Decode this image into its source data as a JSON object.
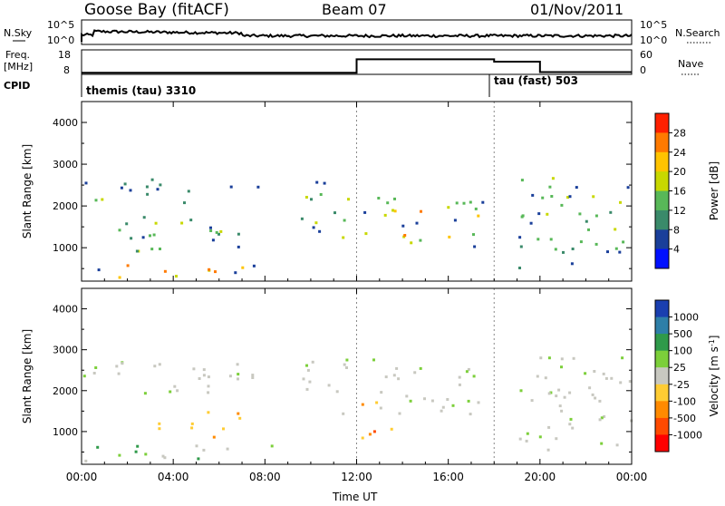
{
  "header": {
    "station": "Goose Bay (fitACF)",
    "beam": "Beam 07",
    "date": "01/Nov/2011"
  },
  "strip_labels": {
    "nsky": "N.Sky",
    "nsky_ticks": [
      "10^5",
      "10^0"
    ],
    "nsearch": "N.Search",
    "freq_top": "Freq.",
    "freq_bottom": "[MHz]",
    "freq_ticks": [
      "18",
      "8"
    ],
    "nave": "Nave",
    "nave_ticks": [
      "60",
      "0"
    ],
    "cpid": "CPID",
    "cpid_a": "themis (tau) 3310",
    "cpid_b": "tau (fast) 503"
  },
  "chart_data": [
    {
      "type": "heatmap",
      "panel": "power",
      "xlabel": "Time UT",
      "ylabel": "Slant Range [km]",
      "xlim": [
        "00:00",
        "24:00"
      ],
      "ylim": [
        200,
        4500
      ],
      "yticks": [
        1000,
        2000,
        3000,
        4000
      ],
      "xticks": [
        "00:00",
        "04:00",
        "08:00",
        "12:00",
        "16:00",
        "20:00",
        "00:00"
      ],
      "colorbar": {
        "label": "Power [dB]",
        "ticks": [
          "28",
          "24",
          "20",
          "16",
          "12",
          "8",
          "4"
        ],
        "colors": [
          "#ff2000",
          "#ff7a00",
          "#ffc400",
          "#c8d800",
          "#58b858",
          "#3a8a6a",
          "#1a3f9a",
          "#0010ff"
        ]
      },
      "echo_regions": [
        {
          "t0": 0.0,
          "t1": 1.2,
          "r0": 1750,
          "r1": 2300,
          "level": "mixed"
        },
        {
          "t0": 0.0,
          "t1": 4.2,
          "r0": 2200,
          "r1": 2700,
          "level": "low"
        },
        {
          "t0": 4.2,
          "t1": 8.2,
          "r0": 2050,
          "r1": 2650,
          "level": "low"
        },
        {
          "t0": 0.0,
          "t1": 8.5,
          "r0": 250,
          "r1": 650,
          "level": "high"
        },
        {
          "t0": 1.5,
          "t1": 7.0,
          "r0": 900,
          "r1": 1750,
          "level": "mid"
        },
        {
          "t0": 9.5,
          "t1": 12.0,
          "r0": 1200,
          "r1": 2700,
          "level": "mid"
        },
        {
          "t0": 12.0,
          "t1": 17.5,
          "r0": 1000,
          "r1": 2200,
          "level": "high"
        },
        {
          "t0": 19.0,
          "t1": 24.0,
          "r0": 500,
          "r1": 2800,
          "level": "mid"
        }
      ]
    },
    {
      "type": "heatmap",
      "panel": "velocity",
      "xlabel": "Time UT",
      "ylabel": "Slant Range [km]",
      "xlim": [
        "00:00",
        "24:00"
      ],
      "ylim": [
        200,
        4500
      ],
      "yticks": [
        1000,
        2000,
        3000,
        4000
      ],
      "xticks": [
        "00:00",
        "04:00",
        "08:00",
        "12:00",
        "16:00",
        "20:00",
        "00:00"
      ],
      "colorbar": {
        "label": "Velocity",
        "unit_html": "[m s<tspan baseline-shift='super' font-size='8'>-1</tspan>]",
        "ticks": [
          "1000",
          "500",
          "100",
          "25",
          "-25",
          "-100",
          "-500",
          "-1000"
        ],
        "colors": [
          "#1a3fb0",
          "#2e7fa8",
          "#2f9a4a",
          "#7ccf3a",
          "#c8c8c0",
          "#ffcc33",
          "#ff8a00",
          "#ff4a00",
          "#ff0000"
        ]
      },
      "echo_regions": [
        {
          "t0": 0.0,
          "t1": 8.5,
          "r0": 250,
          "r1": 650,
          "level": "toward"
        },
        {
          "t0": 0.0,
          "t1": 8.2,
          "r0": 1900,
          "r1": 2700,
          "level": "near-zero"
        },
        {
          "t0": 3.0,
          "t1": 7.0,
          "r0": 800,
          "r1": 1500,
          "level": "away"
        },
        {
          "t0": 9.5,
          "t1": 17.5,
          "r0": 1300,
          "r1": 2800,
          "level": "near-zero"
        },
        {
          "t0": 12.0,
          "t1": 13.5,
          "r0": 800,
          "r1": 1800,
          "level": "away-strong"
        },
        {
          "t0": 19.0,
          "t1": 24.0,
          "r0": 500,
          "r1": 2800,
          "level": "near-zero"
        }
      ]
    }
  ]
}
